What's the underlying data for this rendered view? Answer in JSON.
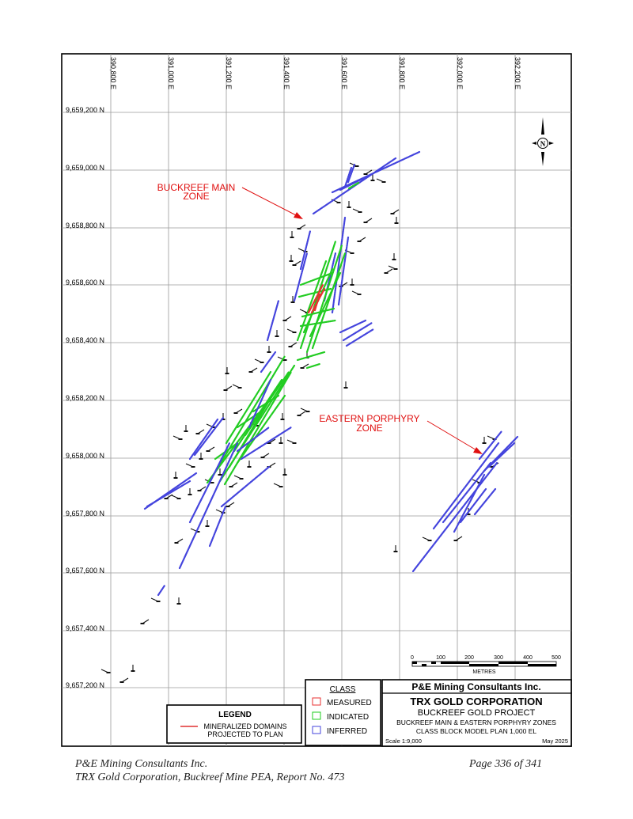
{
  "easting_labels": [
    "390,800 E",
    "391,000 E",
    "391,200 E",
    "391,400 E",
    "391,600 E",
    "391,800 E",
    "392,000 E",
    "392,200 E"
  ],
  "northing_labels": [
    "9,659,200 N",
    "9,659,000 N",
    "9,658,800 N",
    "9,658,600 N",
    "9,658,400 N",
    "9,658,200 N",
    "9,658,000 N",
    "9,657,800 N",
    "9,657,600 N",
    "9,657,400 N",
    "9,657,200 N"
  ],
  "annotations": {
    "buckreef_main_line1": "BUCKREEF MAIN",
    "buckreef_main_line2": "ZONE",
    "eastern_porphyry_line1": "EASTERN PORPHYRY",
    "eastern_porphyry_line2": "ZONE"
  },
  "north_arrow_letter": "N",
  "scale_bar": {
    "ticks": [
      "0",
      "100",
      "200",
      "300",
      "400",
      "500"
    ],
    "unit": "METRES"
  },
  "legend": {
    "title": "LEGEND",
    "item_line1": "MINERALIZED DOMAINS",
    "item_line2": "PROJECTED TO PLAN",
    "item_color": "#e03030"
  },
  "class_legend": {
    "title": "CLASS",
    "items": [
      {
        "label": "MEASURED",
        "color": "#e83030"
      },
      {
        "label": "INDICATED",
        "color": "#22cc22"
      },
      {
        "label": "INFERRED",
        "color": "#4444dd"
      }
    ]
  },
  "title_block": {
    "consultant": "P&E Mining Consultants Inc.",
    "company": "TRX GOLD CORPORATION",
    "project": "BUCKREEF GOLD PROJECT",
    "zones": "BUCKREEF MAIN & EASTERN PORPHYRY ZONES",
    "plan": "CLASS BLOCK MODEL PLAN 1,000 EL",
    "scale": "Scale 1:9,000",
    "date": "May 2025"
  },
  "footer": {
    "left_line1": "P&E Mining Consultants Inc.",
    "left_line2": "TRX Gold Corporation, Buckreef Mine PEA, Report No. 473",
    "right": "Page 336 of 341"
  },
  "colors": {
    "inferred": "#4444dd",
    "indicated": "#22cc22",
    "measured": "#e83030",
    "annotation": "#e01010",
    "grid": "#9a9a9a"
  }
}
